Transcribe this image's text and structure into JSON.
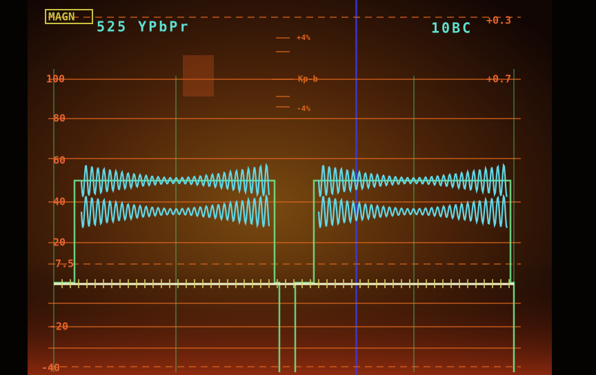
{
  "header": {
    "badge": "MAGN",
    "format": "525 YPbPr",
    "mode": "10BC"
  },
  "left_scale": [
    "100",
    "80",
    "60",
    "40",
    "20",
    "7.5",
    "-20",
    "-40"
  ],
  "right_scale": [
    "+0.3",
    "+0.7"
  ],
  "inset": {
    "top": "+4%",
    "label": "Kp-b",
    "bottom": "-4%"
  }
}
